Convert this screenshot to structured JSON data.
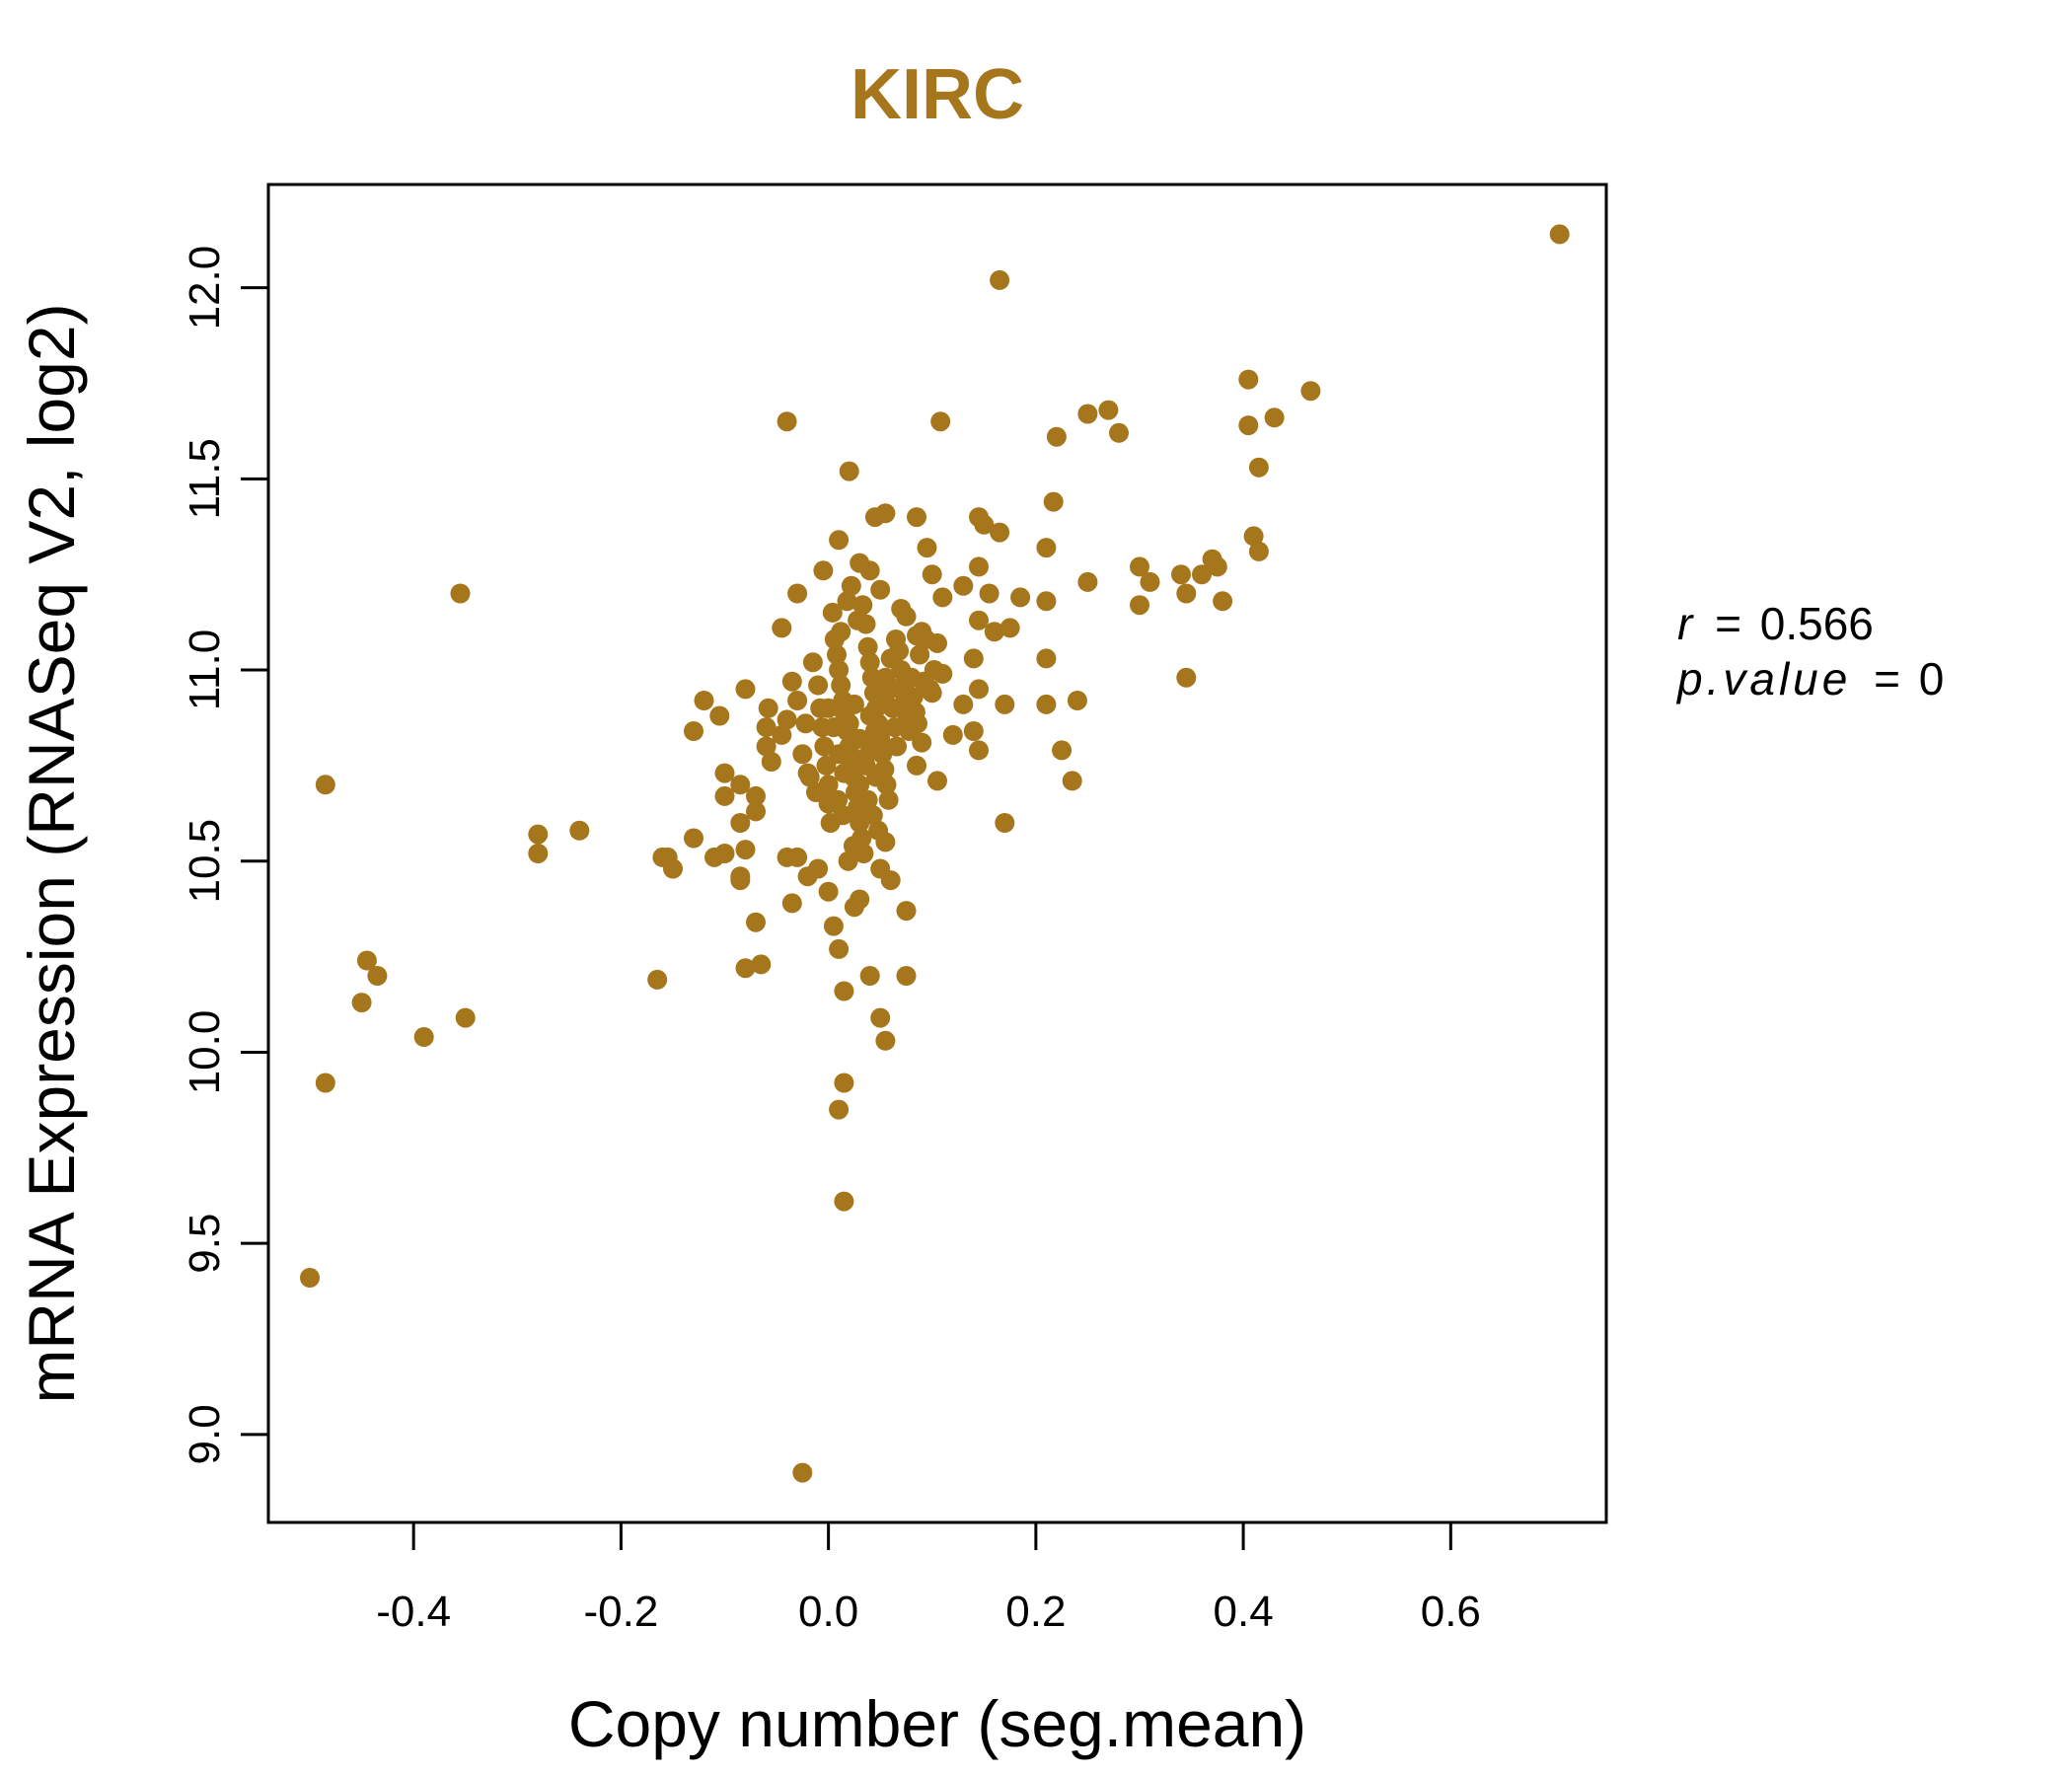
{
  "chart_data": {
    "type": "scatter",
    "title": "KIRC",
    "xlabel": "Copy number (seg.mean)",
    "ylabel": "mRNA Expression (RNASeq V2, log2)",
    "xlim": [
      -0.54,
      0.75
    ],
    "ylim": [
      8.77,
      12.27
    ],
    "xticks": [
      -0.4,
      -0.2,
      0.0,
      0.2,
      0.4,
      0.6
    ],
    "xtick_labels": [
      "-0.4",
      "-0.2",
      "0.0",
      "0.2",
      "0.4",
      "0.6"
    ],
    "yticks": [
      9.0,
      9.5,
      10.0,
      10.5,
      11.0,
      11.5,
      12.0
    ],
    "ytick_labels": [
      "9.0",
      "9.5",
      "10.0",
      "10.5",
      "11.0",
      "11.5",
      "12.0"
    ],
    "grid": false,
    "stats": {
      "r_label": "r",
      "r_value": "0.566",
      "p_label": "p.value",
      "p_value": "0",
      "eq": "="
    },
    "colors": {
      "point": "#A6761D",
      "title": "#A6761D",
      "axis": "#000000"
    },
    "points": [
      [
        0.705,
        12.14
      ],
      [
        0.165,
        12.02
      ],
      [
        0.405,
        11.76
      ],
      [
        0.465,
        11.73
      ],
      [
        0.27,
        11.68
      ],
      [
        0.25,
        11.67
      ],
      [
        0.43,
        11.66
      ],
      [
        0.405,
        11.64
      ],
      [
        0.108,
        11.65
      ],
      [
        -0.04,
        11.65
      ],
      [
        0.22,
        11.61
      ],
      [
        0.28,
        11.62
      ],
      [
        0.415,
        11.53
      ],
      [
        0.02,
        11.52
      ],
      [
        0.217,
        11.44
      ],
      [
        0.045,
        11.4
      ],
      [
        0.055,
        11.41
      ],
      [
        0.085,
        11.4
      ],
      [
        0.145,
        11.4
      ],
      [
        0.15,
        11.38
      ],
      [
        0.165,
        11.36
      ],
      [
        0.41,
        11.35
      ],
      [
        0.01,
        11.34
      ],
      [
        0.095,
        11.32
      ],
      [
        0.21,
        11.32
      ],
      [
        0.415,
        11.31
      ],
      [
        0.37,
        11.29
      ],
      [
        0.03,
        11.28
      ],
      [
        0.3,
        11.27
      ],
      [
        0.375,
        11.27
      ],
      [
        0.145,
        11.27
      ],
      [
        -0.005,
        11.26
      ],
      [
        0.04,
        11.26
      ],
      [
        0.36,
        11.25
      ],
      [
        0.34,
        11.25
      ],
      [
        0.1,
        11.25
      ],
      [
        0.25,
        11.23
      ],
      [
        0.31,
        11.23
      ],
      [
        0.13,
        11.22
      ],
      [
        0.05,
        11.21
      ],
      [
        -0.03,
        11.2
      ],
      [
        0.345,
        11.2
      ],
      [
        0.155,
        11.2
      ],
      [
        0.185,
        11.19
      ],
      [
        0.11,
        11.19
      ],
      [
        0.21,
        11.18
      ],
      [
        0.38,
        11.18
      ],
      [
        0.3,
        11.17
      ],
      [
        0.07,
        11.16
      ],
      [
        0.075,
        11.14
      ],
      [
        0.145,
        11.13
      ],
      [
        0.16,
        11.1
      ],
      [
        0.175,
        11.11
      ],
      [
        -0.045,
        11.11
      ],
      [
        0.085,
        11.09
      ],
      [
        0.105,
        11.07
      ],
      [
        0.14,
        11.03
      ],
      [
        0.21,
        11.03
      ],
      [
        0.345,
        10.98
      ],
      [
        0.11,
        10.99
      ],
      [
        0.145,
        10.95
      ],
      [
        0.1,
        10.94
      ],
      [
        -0.08,
        10.95
      ],
      [
        -0.12,
        10.92
      ],
      [
        0.24,
        10.92
      ],
      [
        0.17,
        10.91
      ],
      [
        0.21,
        10.91
      ],
      [
        0.13,
        10.91
      ],
      [
        -0.105,
        10.88
      ],
      [
        -0.058,
        10.9
      ],
      [
        -0.06,
        10.85
      ],
      [
        0.14,
        10.84
      ],
      [
        -0.13,
        10.84
      ],
      [
        0.12,
        10.83
      ],
      [
        0.09,
        10.81
      ],
      [
        0.145,
        10.79
      ],
      [
        0.225,
        10.79
      ],
      [
        -0.06,
        10.8
      ],
      [
        -0.055,
        10.76
      ],
      [
        0.085,
        10.75
      ],
      [
        -0.1,
        10.73
      ],
      [
        -0.085,
        10.7
      ],
      [
        0.235,
        10.71
      ],
      [
        0.105,
        10.71
      ],
      [
        -0.07,
        10.67
      ],
      [
        -0.1,
        10.67
      ],
      [
        -0.07,
        10.63
      ],
      [
        -0.085,
        10.6
      ],
      [
        0.17,
        10.6
      ],
      [
        -0.485,
        10.7
      ],
      [
        -0.28,
        10.57
      ],
      [
        -0.24,
        10.58
      ],
      [
        -0.13,
        10.56
      ],
      [
        -0.28,
        10.52
      ],
      [
        -0.16,
        10.51
      ],
      [
        -0.155,
        10.51
      ],
      [
        -0.1,
        10.52
      ],
      [
        -0.11,
        10.51
      ],
      [
        -0.08,
        10.53
      ],
      [
        -0.04,
        10.51
      ],
      [
        -0.03,
        10.51
      ],
      [
        -0.15,
        10.48
      ],
      [
        -0.085,
        10.46
      ],
      [
        -0.085,
        10.45
      ],
      [
        -0.01,
        10.48
      ],
      [
        0.05,
        10.48
      ],
      [
        0.06,
        10.45
      ],
      [
        0.055,
        10.55
      ],
      [
        -0.02,
        10.46
      ],
      [
        0.0,
        10.42
      ],
      [
        0.03,
        10.4
      ],
      [
        0.025,
        10.38
      ],
      [
        -0.035,
        10.39
      ],
      [
        -0.07,
        10.34
      ],
      [
        0.075,
        10.37
      ],
      [
        0.005,
        10.33
      ],
      [
        0.01,
        10.27
      ],
      [
        -0.065,
        10.23
      ],
      [
        -0.08,
        10.22
      ],
      [
        0.04,
        10.2
      ],
      [
        0.075,
        10.2
      ],
      [
        -0.165,
        10.19
      ],
      [
        0.015,
        10.16
      ],
      [
        -0.445,
        10.24
      ],
      [
        -0.435,
        10.2
      ],
      [
        -0.45,
        10.13
      ],
      [
        -0.39,
        10.04
      ],
      [
        -0.35,
        10.09
      ],
      [
        -0.355,
        11.2
      ],
      [
        0.05,
        10.09
      ],
      [
        0.055,
        10.03
      ],
      [
        -0.485,
        9.92
      ],
      [
        0.015,
        9.92
      ],
      [
        0.01,
        9.85
      ],
      [
        0.015,
        9.61
      ],
      [
        -0.5,
        9.41
      ],
      [
        -0.025,
        8.9
      ],
      [
        -0.035,
        10.97
      ],
      [
        -0.03,
        10.92
      ],
      [
        -0.04,
        10.87
      ],
      [
        -0.045,
        10.83
      ],
      [
        -0.025,
        10.78
      ],
      [
        -0.02,
        10.73
      ],
      [
        -0.015,
        11.02
      ],
      [
        -0.01,
        10.96
      ],
      [
        -0.008,
        10.9
      ],
      [
        -0.006,
        10.85
      ],
      [
        -0.004,
        10.8
      ],
      [
        -0.002,
        10.75
      ],
      [
        0.0,
        10.7
      ],
      [
        0.0,
        10.65
      ],
      [
        0.002,
        10.6
      ],
      [
        0.004,
        11.15
      ],
      [
        0.006,
        11.08
      ],
      [
        0.008,
        11.04
      ],
      [
        0.01,
        11.0
      ],
      [
        0.012,
        10.96
      ],
      [
        0.014,
        10.92
      ],
      [
        0.016,
        10.88
      ],
      [
        0.018,
        10.84
      ],
      [
        0.02,
        10.8
      ],
      [
        0.022,
        10.76
      ],
      [
        0.024,
        10.72
      ],
      [
        0.026,
        10.68
      ],
      [
        0.028,
        10.64
      ],
      [
        0.03,
        10.6
      ],
      [
        0.032,
        10.56
      ],
      [
        0.034,
        10.52
      ],
      [
        0.036,
        11.12
      ],
      [
        0.038,
        11.06
      ],
      [
        0.04,
        11.02
      ],
      [
        0.042,
        10.98
      ],
      [
        0.044,
        10.94
      ],
      [
        0.046,
        10.9
      ],
      [
        0.048,
        10.86
      ],
      [
        0.05,
        10.82
      ],
      [
        0.052,
        10.78
      ],
      [
        0.054,
        10.74
      ],
      [
        0.056,
        10.7
      ],
      [
        0.058,
        10.66
      ],
      [
        0.06,
        10.95
      ],
      [
        0.062,
        10.9
      ],
      [
        0.064,
        10.85
      ],
      [
        0.066,
        10.8
      ],
      [
        0.068,
        11.05
      ],
      [
        0.07,
        11.0
      ],
      [
        0.072,
        10.96
      ],
      [
        0.074,
        10.92
      ],
      [
        0.076,
        10.88
      ],
      [
        0.078,
        10.84
      ],
      [
        0.08,
        10.98
      ],
      [
        0.082,
        10.93
      ],
      [
        0.084,
        10.89
      ],
      [
        0.086,
        10.86
      ],
      [
        0.088,
        11.04
      ],
      [
        0.09,
        11.1
      ],
      [
        0.092,
        10.97
      ],
      [
        0.094,
        11.08
      ],
      [
        0.098,
        10.95
      ],
      [
        0.102,
        11.0
      ],
      [
        0.01,
        10.78
      ],
      [
        0.015,
        10.73
      ],
      [
        0.02,
        10.86
      ],
      [
        0.025,
        10.91
      ],
      [
        0.03,
        10.82
      ],
      [
        0.035,
        10.77
      ],
      [
        0.04,
        10.88
      ],
      [
        0.045,
        10.84
      ],
      [
        0.05,
        10.93
      ],
      [
        0.055,
        10.98
      ],
      [
        0.06,
        11.03
      ],
      [
        0.065,
        11.08
      ],
      [
        0.0,
        10.9
      ],
      [
        0.005,
        10.85
      ],
      [
        0.012,
        11.1
      ],
      [
        0.018,
        11.18
      ],
      [
        0.022,
        11.22
      ],
      [
        0.028,
        11.13
      ],
      [
        0.033,
        11.17
      ],
      [
        0.038,
        10.66
      ],
      [
        0.043,
        10.62
      ],
      [
        0.048,
        10.58
      ],
      [
        0.014,
        10.62
      ],
      [
        0.009,
        10.66
      ],
      [
        -0.012,
        10.68
      ],
      [
        -0.018,
        10.72
      ],
      [
        -0.022,
        10.86
      ],
      [
        0.024,
        10.54
      ],
      [
        0.019,
        10.5
      ],
      [
        0.03,
        10.7
      ],
      [
        0.036,
        10.75
      ],
      [
        0.041,
        10.8
      ],
      [
        0.046,
        10.72
      ]
    ]
  }
}
